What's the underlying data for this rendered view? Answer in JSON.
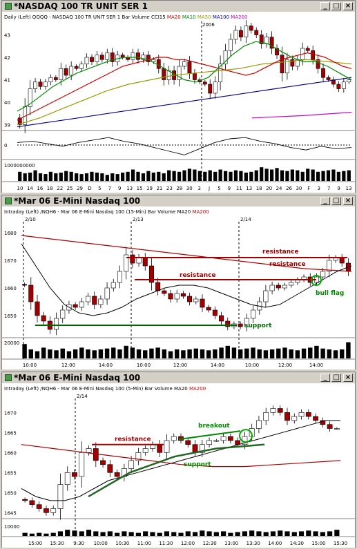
{
  "windows": [
    {
      "id": "w1",
      "title": "*NASDAQ 100 TR UNIT SER 1",
      "header_prefix": "Daily",
      "header_left": "(Left)",
      "header_sym": "QQQQ - NASDAQ 100 TR UNIT SER 1",
      "header_bar": "Bar",
      "header_vol": "Volume",
      "indicators": [
        {
          "name": "CCI15",
          "color": "#000000"
        },
        {
          "name": "MA20",
          "color": "#cc0000"
        },
        {
          "name": "MA10",
          "color": "#008800"
        },
        {
          "name": "MA50",
          "color": "#999900"
        },
        {
          "name": "MA100",
          "color": "#000088"
        },
        {
          "name": "MA200",
          "color": "#cc00cc"
        }
      ],
      "year_label": "2006",
      "price_ticks": [
        "43",
        "42",
        "41",
        "40",
        "39"
      ],
      "cci_ticks": [
        "0"
      ],
      "vol_ticks": [
        "1000000000"
      ],
      "xticks": [
        "10",
        "14",
        "16",
        "18",
        "22",
        "25",
        "29",
        "D",
        "5",
        "7",
        "9",
        "13",
        "15",
        "19",
        "21",
        "23",
        "28",
        "30",
        "3",
        "J",
        "5",
        "9",
        "11",
        "13",
        "18",
        "20",
        "24",
        "26",
        "30",
        "F",
        "3",
        "7",
        "9",
        "13"
      ]
    },
    {
      "id": "w2",
      "title": "*Mar 06  E-Mini Nasdaq 100",
      "header_prefix": "Intraday",
      "header_left": "(Left)",
      "header_sym": "/NQH6 - Mar 06  E-Mini Nasdaq 100 (15-Min)",
      "header_bar": "Bar",
      "header_vol": "Volume",
      "indicators": [
        {
          "name": "MA20",
          "color": "#000000"
        },
        {
          "name": "MA200",
          "color": "#cc0000"
        }
      ],
      "dates": [
        "2/10",
        "2/13",
        "2/14"
      ],
      "price_ticks": [
        "1680",
        "1670",
        "1660",
        "1650"
      ],
      "vol_ticks": [
        "20000"
      ],
      "xticks": [
        "10:00",
        "12:00",
        "14:00",
        "10:00",
        "12:00",
        "14:00",
        "10:00",
        "12:00",
        "14:00"
      ],
      "annotations": {
        "resistance_top": "resistance",
        "resistance_mid": "resistance",
        "resistance_low": "resistance",
        "support": "support",
        "bull_flag": "bull flag"
      }
    },
    {
      "id": "w3",
      "title": "*Mar 06  E-Mini Nasdaq 100",
      "header_prefix": "Intraday",
      "header_left": "(Left)",
      "header_sym": "/NQH6 - Mar 06  E-Mini Nasdaq 100 (5-Min)",
      "header_bar": "Bar",
      "header_vol": "Volume",
      "indicators": [
        {
          "name": "MA20",
          "color": "#000000"
        },
        {
          "name": "MA200",
          "color": "#cc0000"
        }
      ],
      "dates": [
        "2/14"
      ],
      "price_ticks": [
        "1670",
        "1665",
        "1660",
        "1655",
        "1650",
        "1645"
      ],
      "vol_ticks": [
        "10000"
      ],
      "xticks": [
        "15:00",
        "15:30",
        "9:30",
        "10:00",
        "10:30",
        "11:00",
        "11:30",
        "12:00",
        "12:30",
        "13:00",
        "13:30",
        "14:00",
        "14:30",
        "15:00",
        "15:30"
      ],
      "annotations": {
        "resistance": "resistance",
        "breakout": "breakout",
        "support": "support"
      }
    }
  ],
  "chart_data": [
    {
      "type": "candlestick",
      "title": "QQQQ - NASDAQ 100 TR UNIT SER 1",
      "ylim": [
        38.8,
        43.6
      ],
      "closes": [
        39.0,
        39.8,
        40.6,
        40.9,
        40.7,
        40.9,
        41.1,
        41.0,
        41.5,
        41.2,
        41.6,
        41.5,
        41.7,
        42.0,
        41.8,
        42.1,
        41.9,
        42.2,
        41.8,
        42.1,
        42.0,
        41.9,
        42.2,
        41.9,
        42.1,
        41.8,
        41.9,
        41.5,
        41.0,
        41.4,
        41.0,
        41.6,
        41.8,
        41.3,
        41.0,
        40.9,
        40.8,
        40.4,
        40.9,
        41.7,
        42.3,
        42.8,
        43.2,
        42.9,
        43.4,
        43.2,
        43.0,
        42.6,
        42.9,
        42.4,
        42.1,
        41.3,
        41.9,
        41.6,
        41.9,
        42.4,
        42.3,
        41.9,
        41.5,
        41.1,
        41.0,
        40.8,
        40.6,
        40.9,
        41.0
      ],
      "ma20": [
        39.2,
        39.4,
        39.6,
        39.8,
        40.0,
        40.2,
        40.4,
        40.6,
        40.8,
        41.0,
        41.2,
        41.4,
        41.6,
        41.7,
        41.8,
        41.9,
        42.0,
        42.0,
        41.9,
        41.9,
        41.8,
        41.7,
        41.6,
        41.5,
        41.4,
        41.3,
        41.2,
        41.3,
        41.5,
        41.7,
        41.9,
        42.0,
        42.1,
        42.2,
        42.1,
        42.0,
        41.8,
        41.6,
        41.5
      ],
      "ma10": [
        39.6,
        39.9,
        40.3,
        40.7,
        41.0,
        41.3,
        41.5,
        41.7,
        41.9,
        42.0,
        42.0,
        41.9,
        41.6,
        41.3,
        41.0,
        40.9,
        41.1,
        41.6,
        42.1,
        42.5,
        42.7,
        42.6,
        42.3,
        42.0,
        41.8,
        41.8,
        41.6,
        41.3,
        41.0
      ],
      "ma50": [
        39.0,
        39.3,
        39.7,
        40.1,
        40.5,
        40.8,
        41.0,
        41.2,
        41.3,
        41.4,
        41.5,
        41.7,
        41.8,
        41.9,
        41.8,
        41.7
      ],
      "ma100": [
        38.9,
        39.1,
        39.3,
        39.5,
        39.7,
        39.9,
        40.1,
        40.3,
        40.5,
        40.7,
        40.9,
        41.1
      ],
      "ma200": [
        39.3,
        39.4,
        39.55
      ],
      "cci": [
        0.2,
        0.3,
        0.1,
        -0.1,
        0.2,
        0.4,
        0.6,
        0.3,
        0.1,
        -0.2,
        -0.5,
        -0.8,
        -0.3,
        0.2,
        0.5,
        0.6,
        0.3,
        0.1,
        -0.2,
        -0.4,
        -0.1,
        -0.3,
        -0.2
      ],
      "volume": [
        0.6,
        0.5,
        0.55,
        0.7,
        0.5,
        0.45,
        0.6,
        0.5,
        0.55,
        0.65,
        0.6,
        0.5,
        0.45,
        0.5,
        0.6,
        0.55,
        0.5,
        0.4,
        0.5,
        0.45,
        0.55,
        0.6,
        0.75,
        0.6,
        0.5,
        0.65,
        0.55,
        0.6,
        0.5,
        0.7,
        0.65,
        0.6,
        0.7,
        0.8,
        0.75,
        0.65,
        0.6,
        0.7,
        0.6,
        0.75,
        0.65,
        0.6,
        0.7,
        0.65,
        0.55,
        0.6,
        0.7,
        0.9,
        0.8,
        0.75,
        0.85,
        0.7,
        0.65,
        0.75,
        0.7,
        0.6,
        0.8,
        0.75,
        0.6,
        0.65,
        0.7,
        0.75,
        0.6,
        0.65,
        0.7
      ]
    },
    {
      "type": "candlestick",
      "title": "/NQH6 - Mar 06  E-Mini Nasdaq 100 (15-Min)",
      "ylim": [
        1642,
        1684
      ],
      "closes": [
        1661,
        1655,
        1650,
        1648,
        1645,
        1649,
        1652,
        1654,
        1653,
        1655,
        1657,
        1654,
        1656,
        1660,
        1662,
        1666,
        1672,
        1669,
        1671,
        1668,
        1662,
        1659,
        1658,
        1656,
        1658,
        1657,
        1655,
        1656,
        1653,
        1652,
        1650,
        1648,
        1646,
        1647,
        1646,
        1649,
        1652,
        1655,
        1659,
        1661,
        1660,
        1661,
        1662,
        1663,
        1664,
        1662,
        1664,
        1666,
        1670,
        1671,
        1669,
        1666
      ],
      "ma20": [
        1676,
        1668,
        1660,
        1654,
        1651,
        1650,
        1651,
        1653,
        1656,
        1658,
        1660,
        1661,
        1661,
        1660,
        1658,
        1656,
        1654,
        1653,
        1654,
        1657,
        1660,
        1663,
        1666,
        1668
      ],
      "ma200": [
        1679,
        1677,
        1675,
        1673,
        1671,
        1669,
        1667,
        1666
      ],
      "levels": {
        "resistance_top": 1671,
        "resistance_low": 1663,
        "support": 1646.5
      },
      "volume": [
        0.8,
        0.5,
        0.4,
        0.6,
        0.5,
        0.45,
        0.55,
        0.4,
        0.5,
        0.6,
        0.5,
        0.45,
        0.5,
        0.55,
        0.6,
        0.5,
        0.7,
        0.6,
        0.5,
        0.45,
        0.55,
        0.6,
        0.5,
        0.4,
        0.5,
        0.45,
        0.5,
        0.55,
        0.5,
        0.45,
        0.5,
        0.6,
        0.7,
        0.6,
        0.5,
        0.55,
        0.6,
        0.5,
        0.45,
        0.5,
        0.55,
        0.6,
        0.5,
        0.45,
        0.55,
        0.6,
        0.7,
        0.55,
        0.5,
        0.45,
        0.5,
        0.9
      ]
    },
    {
      "type": "candlestick",
      "title": "/NQH6 - Mar 06  E-Mini Nasdaq 100 (5-Min)",
      "ylim": [
        1643.5,
        1673.5
      ],
      "closes": [
        1648,
        1647,
        1646,
        1645,
        1646,
        1652,
        1655,
        1654,
        1660,
        1661,
        1658,
        1657,
        1655,
        1654,
        1656,
        1658,
        1660,
        1661,
        1662,
        1660,
        1663,
        1664,
        1663,
        1662,
        1660,
        1662,
        1663,
        1663,
        1664,
        1663,
        1662,
        1664,
        1666,
        1668,
        1670,
        1671,
        1670,
        1668,
        1669,
        1670,
        1669,
        1668,
        1667,
        1666,
        1666
      ],
      "ma20": [
        1651,
        1649,
        1648,
        1648,
        1649,
        1651,
        1653,
        1654,
        1655,
        1656,
        1657,
        1658,
        1659,
        1660,
        1661,
        1662,
        1663,
        1664,
        1665,
        1666,
        1667,
        1668,
        1668
      ],
      "ma200": [
        1662,
        1661,
        1660,
        1659,
        1658,
        1657,
        1656.5,
        1656.5,
        1657,
        1657.5,
        1658
      ],
      "levels": {
        "resistance": 1662,
        "breakout": 1664
      },
      "volume": [
        0.2,
        0.15,
        0.2,
        0.15,
        0.2,
        0.3,
        0.4,
        0.35,
        0.3,
        0.4,
        0.3,
        0.25,
        0.3,
        0.2,
        0.3,
        0.25,
        0.2,
        0.3,
        0.25,
        0.2,
        0.3,
        0.25,
        0.2,
        0.3,
        0.25,
        0.35,
        0.3,
        0.25,
        0.3,
        0.2,
        0.25,
        0.3,
        0.35,
        0.3,
        0.25,
        0.3,
        0.35,
        0.3,
        0.25,
        0.3,
        0.35,
        0.3,
        0.25,
        0.3,
        0.4
      ]
    }
  ]
}
